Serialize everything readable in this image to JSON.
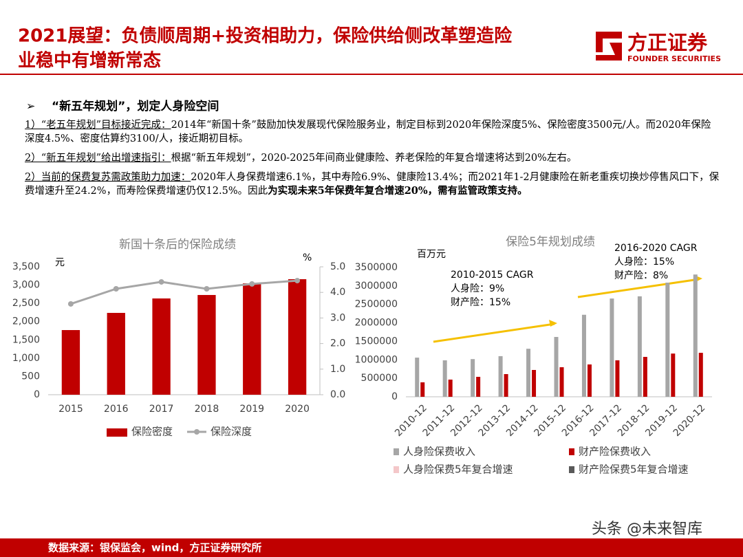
{
  "header": {
    "title_lines": [
      "2021展望：负债顺周期+投资相助力，保险供给侧改革塑造险",
      "业稳中有增新常态"
    ],
    "logo": "方正证券",
    "logo_en": "FOUNDER SECURITIES"
  },
  "bullets": {
    "heading_marker": "➢",
    "heading": "“新五年规划”，划定人身险空间",
    "paragraphs": [
      {
        "lead": "1）“老五年规划”目标接近完成：",
        "body": "2014年“新国十条”鼓励加快发展现代保险服务业，制定目标到2020年保险深度5%、保险密度3500元/人。而2020年保险深度4.5%、密度估算约3100/人，接近期初目标。"
      },
      {
        "lead": "2）“新五年规划”给出增速指引：",
        "body": "根据“新五年规划”，2020-2025年间商业健康险、养老保险的年复合增速将达到20%左右。"
      },
      {
        "lead": "2）当前的保费复苏需政策助力加速：",
        "body": "2020年人身保费增速6.1%，其中寿险6.9%、健康险13.4%；而2021年1-2月健康险在新老重疾切换炒停售风口下，保费增速升至24.2%，而寿险保费增速仍仅12.5%。因此",
        "bold": "为实现未来5年保费年复合增速20%，需有监管政策支持。"
      }
    ]
  },
  "chart_data": [
    {
      "type": "bar",
      "title": "新国十条后的保险成绩",
      "y_label": "元",
      "y2_label": "%",
      "categories": [
        "2015",
        "2016",
        "2017",
        "2018",
        "2019",
        "2020"
      ],
      "series": [
        {
          "name": "保险密度",
          "color": "#c00000",
          "type": "bar",
          "values": [
            1769,
            2239,
            2634,
            2729,
            3048,
            3161
          ]
        },
        {
          "name": "保险深度",
          "color": "#a6a6a6",
          "type": "line",
          "axis": "y2",
          "values": [
            3.55,
            4.14,
            4.41,
            4.14,
            4.33,
            4.46
          ]
        }
      ],
      "ylim": [
        0,
        3500
      ],
      "yticks": [
        0,
        500,
        {
          "value": 1000,
          "label": "1,000"
        },
        {
          "value": 1500,
          "label": "1,500"
        },
        {
          "value": 2000,
          "label": "2,000"
        },
        {
          "value": 2500,
          "label": "2,500"
        },
        {
          "value": 3000,
          "label": "3,000"
        },
        {
          "value": 3500,
          "label": "3,500"
        }
      ],
      "y2lim": [
        0,
        5
      ],
      "y2ticks": [
        {
          "value": 0,
          "label": "0.0"
        },
        {
          "value": 1,
          "label": "1.0"
        },
        {
          "value": 2,
          "label": "2.0"
        },
        {
          "value": 3,
          "label": "3.0"
        },
        {
          "value": 4,
          "label": "4.0"
        },
        {
          "value": 5,
          "label": "5.0"
        }
      ],
      "legend": "bottom",
      "grid": false
    },
    {
      "type": "bar",
      "title": "保险5年规划成绩",
      "y_label": "百万元",
      "categories": [
        "2010-12",
        "2011-12",
        "2012-12",
        "2013-12",
        "2014-12",
        "2015-12",
        "2016-12",
        "2017-12",
        "2018-12",
        "2019-12",
        "2020-12"
      ],
      "series": [
        {
          "name": "人身险保费收入",
          "color": "#a6a6a6",
          "values": [
            1060000,
            987000,
            1020000,
            1100000,
            1300000,
            1620000,
            2220000,
            2660000,
            2720000,
            3090000,
            3310000
          ]
        },
        {
          "name": "财产险保费收入",
          "color": "#c00000",
          "values": [
            391000,
            465000,
            540000,
            614000,
            726000,
            800000,
            875000,
            987000,
            1080000,
            1170000,
            1190000
          ]
        },
        {
          "name": "人身险保费5年复合增速",
          "color": "#f4c7c9",
          "values": [
            null,
            null,
            null,
            null,
            null,
            null,
            null,
            null,
            null,
            null,
            null
          ]
        },
        {
          "name": "财产险保费5年复合增速",
          "color": "#595959",
          "values": [
            null,
            null,
            null,
            null,
            null,
            null,
            null,
            null,
            null,
            null,
            null
          ]
        }
      ],
      "ylim": [
        0,
        3500000
      ],
      "yticks": [
        0,
        500000,
        1000000,
        1500000,
        2000000,
        2500000,
        3000000,
        3500000
      ],
      "annotations": [
        [
          "2010-2015 CAGR",
          "人身险：9%",
          "财产险：15%"
        ],
        [
          "2016-2020 CAGR",
          "人身险：15%",
          "财产险：8%"
        ]
      ],
      "legend": "bottom",
      "grid": false
    }
  ],
  "footer": {
    "source": "数据来源：银保监会，wind，方正证券研究所",
    "watermark": "头条 @未来智库"
  }
}
